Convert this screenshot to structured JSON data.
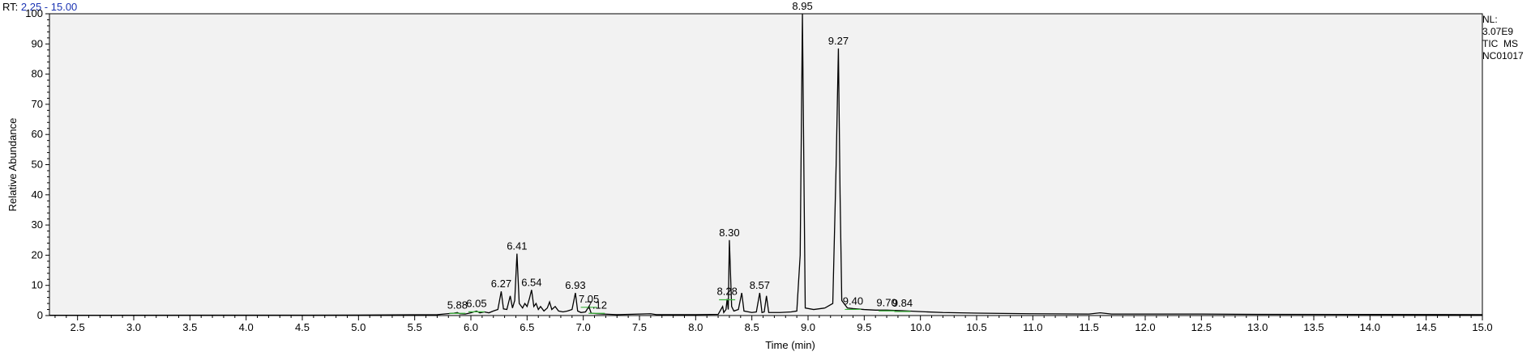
{
  "header": {
    "rt_prefix": "RT:",
    "rt_range": "2.25 - 15.00"
  },
  "info_panel": {
    "nl_label": "NL:",
    "nl_value": "3.07E9",
    "scan_type": "TIC  MS",
    "sample": "NC01017"
  },
  "colors": {
    "trace": "#000000",
    "plot_bg": "#f2f2f2",
    "accent_text": "#1a33b3",
    "baseline_marks": "#3cb43c"
  },
  "chart_data": {
    "type": "line",
    "title": "",
    "xlabel": "Time (min)",
    "ylabel": "Relative Abundance",
    "xlim": [
      2.25,
      15.0
    ],
    "ylim": [
      0,
      100
    ],
    "xticks": [
      "2.5",
      "3.0",
      "3.5",
      "4.0",
      "4.5",
      "5.0",
      "5.5",
      "6.0",
      "6.5",
      "7.0",
      "7.5",
      "8.0",
      "8.5",
      "9.0",
      "9.5",
      "10.0",
      "10.5",
      "11.0",
      "11.5",
      "12.0",
      "12.5",
      "13.0",
      "13.5",
      "14.0",
      "14.5",
      "15.0"
    ],
    "yticks": [
      "0",
      "10",
      "20",
      "30",
      "40",
      "50",
      "60",
      "70",
      "80",
      "90",
      "100"
    ],
    "peak_labels": [
      {
        "text": "5.88",
        "x": 5.88,
        "y": 1.0
      },
      {
        "text": "6.05",
        "x": 6.05,
        "y": 1.5
      },
      {
        "text": "6.27",
        "x": 6.27,
        "y": 8.0
      },
      {
        "text": "6.41",
        "x": 6.41,
        "y": 20.5
      },
      {
        "text": "6.54",
        "x": 6.54,
        "y": 8.5
      },
      {
        "text": "6.93",
        "x": 6.93,
        "y": 7.5
      },
      {
        "text": "7.05",
        "x": 7.05,
        "y": 3.0
      },
      {
        "text": "7.12",
        "x": 7.12,
        "y": 1.0
      },
      {
        "text": "8.28",
        "x": 8.28,
        "y": 5.5
      },
      {
        "text": "8.30",
        "x": 8.3,
        "y": 25.0
      },
      {
        "text": "8.57",
        "x": 8.57,
        "y": 7.5
      },
      {
        "text": "8.95",
        "x": 8.95,
        "y": 100
      },
      {
        "text": "9.27",
        "x": 9.27,
        "y": 88.5
      },
      {
        "text": "9.40",
        "x": 9.4,
        "y": 2.3
      },
      {
        "text": "9.70",
        "x": 9.7,
        "y": 1.8
      },
      {
        "text": "9.84",
        "x": 9.84,
        "y": 1.6
      }
    ],
    "series": [
      {
        "points": [
          [
            2.25,
            0.1
          ],
          [
            5.0,
            0.15
          ],
          [
            5.7,
            0.3
          ],
          [
            5.85,
            0.8
          ],
          [
            5.88,
            1.0
          ],
          [
            5.9,
            0.6
          ],
          [
            5.95,
            0.5
          ],
          [
            6.0,
            0.9
          ],
          [
            6.05,
            1.5
          ],
          [
            6.08,
            0.9
          ],
          [
            6.12,
            1.2
          ],
          [
            6.16,
            0.9
          ],
          [
            6.2,
            1.5
          ],
          [
            6.24,
            2.0
          ],
          [
            6.27,
            8.0
          ],
          [
            6.29,
            2.2
          ],
          [
            6.32,
            2.0
          ],
          [
            6.35,
            6.5
          ],
          [
            6.37,
            2.5
          ],
          [
            6.39,
            5.0
          ],
          [
            6.41,
            20.5
          ],
          [
            6.43,
            4.0
          ],
          [
            6.46,
            2.5
          ],
          [
            6.48,
            4.0
          ],
          [
            6.5,
            3.0
          ],
          [
            6.52,
            5.5
          ],
          [
            6.54,
            8.5
          ],
          [
            6.56,
            3.0
          ],
          [
            6.58,
            4.0
          ],
          [
            6.6,
            2.0
          ],
          [
            6.62,
            3.0
          ],
          [
            6.65,
            1.5
          ],
          [
            6.68,
            2.5
          ],
          [
            6.7,
            4.5
          ],
          [
            6.72,
            2.0
          ],
          [
            6.75,
            3.0
          ],
          [
            6.78,
            1.5
          ],
          [
            6.82,
            1.2
          ],
          [
            6.86,
            1.5
          ],
          [
            6.9,
            2.0
          ],
          [
            6.93,
            7.5
          ],
          [
            6.95,
            1.5
          ],
          [
            6.98,
            1.0
          ],
          [
            7.02,
            1.2
          ],
          [
            7.05,
            3.0
          ],
          [
            7.07,
            0.8
          ],
          [
            7.12,
            0.6
          ],
          [
            7.3,
            0.3
          ],
          [
            7.6,
            0.6
          ],
          [
            7.65,
            0.3
          ],
          [
            8.0,
            0.3
          ],
          [
            8.2,
            0.4
          ],
          [
            8.24,
            3.0
          ],
          [
            8.25,
            1.0
          ],
          [
            8.27,
            2.0
          ],
          [
            8.28,
            5.5
          ],
          [
            8.29,
            2.0
          ],
          [
            8.3,
            25.0
          ],
          [
            8.32,
            3.0
          ],
          [
            8.34,
            1.5
          ],
          [
            8.38,
            2.0
          ],
          [
            8.41,
            7.5
          ],
          [
            8.43,
            1.5
          ],
          [
            8.5,
            1.0
          ],
          [
            8.54,
            1.2
          ],
          [
            8.57,
            7.5
          ],
          [
            8.59,
            1.0
          ],
          [
            8.61,
            1.2
          ],
          [
            8.63,
            6.5
          ],
          [
            8.65,
            1.0
          ],
          [
            8.75,
            1.0
          ],
          [
            8.85,
            1.2
          ],
          [
            8.9,
            1.5
          ],
          [
            8.93,
            20
          ],
          [
            8.95,
            100
          ],
          [
            8.965,
            40
          ],
          [
            8.975,
            2.5
          ],
          [
            9.05,
            2.0
          ],
          [
            9.15,
            2.5
          ],
          [
            9.22,
            4.0
          ],
          [
            9.25,
            50
          ],
          [
            9.27,
            88.5
          ],
          [
            9.285,
            40
          ],
          [
            9.3,
            5.0
          ],
          [
            9.35,
            2.5
          ],
          [
            9.4,
            2.3
          ],
          [
            9.5,
            2.0
          ],
          [
            9.6,
            1.8
          ],
          [
            9.7,
            1.8
          ],
          [
            9.84,
            1.6
          ],
          [
            10.0,
            1.3
          ],
          [
            10.2,
            1.0
          ],
          [
            10.5,
            0.8
          ],
          [
            11.0,
            0.6
          ],
          [
            11.5,
            0.5
          ],
          [
            11.6,
            0.9
          ],
          [
            11.7,
            0.5
          ],
          [
            12.0,
            0.5
          ],
          [
            12.5,
            0.5
          ],
          [
            13.0,
            0.4
          ],
          [
            14.0,
            0.35
          ],
          [
            15.0,
            0.3
          ]
        ]
      }
    ]
  }
}
